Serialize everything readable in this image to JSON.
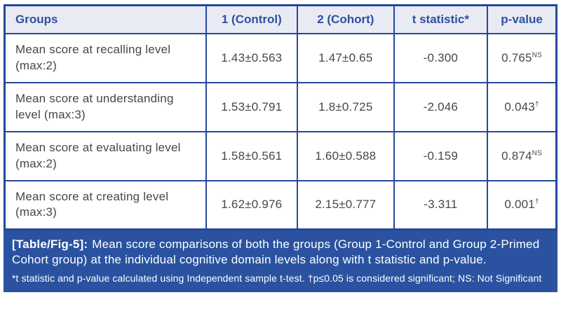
{
  "colors": {
    "table_border": "#26489b",
    "header_bg": "#e9ebf4",
    "header_text": "#2d50a0",
    "body_text": "#474747",
    "caption_bg": "#2a52a0",
    "caption_text": "#ffffff"
  },
  "table": {
    "columns": [
      "Groups",
      "1 (Control)",
      "2 (Cohort)",
      "t statistic*",
      "p-value"
    ],
    "rows": [
      {
        "group": "Mean score at recalling level (max:2)",
        "control": "1.43±0.563",
        "cohort": "1.47±0.65",
        "t_statistic": "-0.300",
        "p_value": "0.765",
        "p_sup": "NS"
      },
      {
        "group": "Mean score at understanding level (max:3)",
        "control": "1.53±0.791",
        "cohort": "1.8±0.725",
        "t_statistic": "-2.046",
        "p_value": "0.043",
        "p_sup": "†"
      },
      {
        "group": "Mean score at evaluating level (max:2)",
        "control": "1.58±0.561",
        "cohort": "1.60±0.588",
        "t_statistic": "-0.159",
        "p_value": "0.874",
        "p_sup": "NS"
      },
      {
        "group": "Mean score at creating level (max:3)",
        "control": "1.62±0.976",
        "cohort": "2.15±0.777",
        "t_statistic": "-3.311",
        "p_value": "0.001",
        "p_sup": "†"
      }
    ]
  },
  "caption": {
    "label": "[Table/Fig-5]:",
    "text": "Mean score comparisons of both the groups (Group 1-Control and Group 2-Primed Cohort group) at the individual cognitive domain levels along with t statistic and p-value.",
    "footnote": "*t statistic and p-value calculated using Independent sample t-test. †p≤0.05 is considered significant; NS: Not Significant"
  }
}
